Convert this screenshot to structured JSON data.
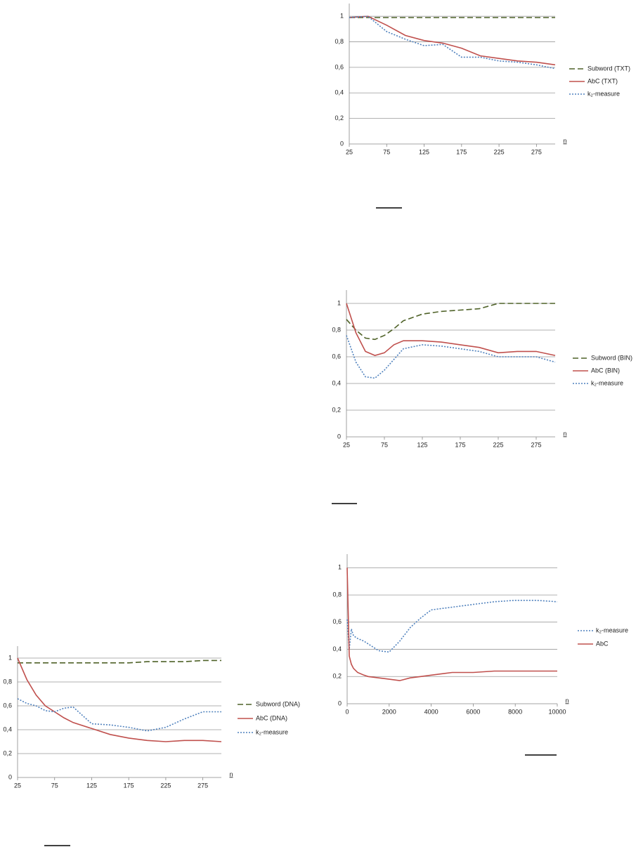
{
  "chart_data": [
    {
      "type": "line",
      "xlabel": "n",
      "x": [
        25,
        50,
        75,
        100,
        125,
        150,
        175,
        200,
        225,
        250,
        275,
        300
      ],
      "xlim": [
        25,
        300
      ],
      "xticks": [
        25,
        75,
        125,
        175,
        225,
        275
      ],
      "ylim": [
        0,
        1.1
      ],
      "yticks": [
        0,
        {
          "value": 0.2,
          "label": "0,2"
        },
        {
          "value": 0.4,
          "label": "0,4"
        },
        {
          "value": 0.6,
          "label": "0,6"
        },
        {
          "value": 0.8,
          "label": "0,8"
        },
        1
      ],
      "grid": true,
      "series": [
        {
          "name": "Subword (TXT)",
          "color": "#4f6228",
          "style": "dashed",
          "values": [
            0.99,
            0.99,
            0.99,
            0.99,
            0.99,
            0.99,
            0.99,
            0.99,
            0.99,
            0.99,
            0.99,
            0.99
          ]
        },
        {
          "name": "AbC (TXT)",
          "color": "#c0504d",
          "style": "solid",
          "values": [
            0.99,
            1.0,
            0.93,
            0.85,
            0.81,
            0.79,
            0.75,
            0.69,
            0.67,
            0.65,
            0.64,
            0.62
          ]
        },
        {
          "name": "k₂-measure",
          "color": "#4f81bd",
          "style": "dotted",
          "values": [
            0.99,
            1.0,
            0.88,
            0.82,
            0.77,
            0.78,
            0.68,
            0.68,
            0.65,
            0.64,
            0.62,
            0.59
          ]
        }
      ]
    },
    {
      "type": "line",
      "xlabel": "n",
      "x": [
        25,
        37.5,
        50,
        62.5,
        75,
        87.5,
        100,
        125,
        150,
        175,
        200,
        225,
        250,
        275,
        300
      ],
      "xlim": [
        25,
        300
      ],
      "xticks": [
        25,
        75,
        125,
        175,
        225,
        275
      ],
      "ylim": [
        0,
        1.1
      ],
      "yticks": [
        0,
        {
          "value": 0.2,
          "label": "0,2"
        },
        {
          "value": 0.4,
          "label": "0,4"
        },
        {
          "value": 0.6,
          "label": "0,6"
        },
        {
          "value": 0.8,
          "label": "0,8"
        },
        1
      ],
      "grid": true,
      "series": [
        {
          "name": "Subword (BIN)",
          "color": "#4f6228",
          "style": "dashed",
          "values": [
            0.88,
            0.8,
            0.74,
            0.73,
            0.76,
            0.81,
            0.87,
            0.92,
            0.94,
            0.95,
            0.96,
            1.0,
            1.0,
            1.0,
            1.0
          ]
        },
        {
          "name": "AbC (BIN)",
          "color": "#c0504d",
          "style": "solid",
          "values": [
            1.0,
            0.78,
            0.64,
            0.61,
            0.63,
            0.69,
            0.72,
            0.72,
            0.71,
            0.69,
            0.67,
            0.63,
            0.64,
            0.64,
            0.61
          ]
        },
        {
          "name": "k₂-measure",
          "color": "#4f81bd",
          "style": "dotted",
          "values": [
            0.76,
            0.56,
            0.45,
            0.44,
            0.5,
            0.58,
            0.66,
            0.69,
            0.68,
            0.66,
            0.64,
            0.6,
            0.6,
            0.6,
            0.56
          ]
        }
      ]
    },
    {
      "type": "line",
      "xlabel": "n",
      "x": [
        25,
        37.5,
        50,
        62.5,
        75,
        87.5,
        100,
        125,
        150,
        175,
        200,
        225,
        250,
        275,
        300
      ],
      "xlim": [
        25,
        300
      ],
      "xticks": [
        25,
        75,
        125,
        175,
        225,
        275
      ],
      "ylim": [
        0,
        1.1
      ],
      "yticks": [
        0,
        {
          "value": 0.2,
          "label": "0,2"
        },
        {
          "value": 0.4,
          "label": "0,4"
        },
        {
          "value": 0.6,
          "label": "0,6"
        },
        {
          "value": 0.8,
          "label": "0,8"
        },
        1
      ],
      "grid": true,
      "series": [
        {
          "name": "Subword (DNA)",
          "color": "#4f6228",
          "style": "dashed",
          "values": [
            0.96,
            0.96,
            0.96,
            0.96,
            0.96,
            0.96,
            0.96,
            0.96,
            0.96,
            0.96,
            0.97,
            0.97,
            0.97,
            0.98,
            0.98
          ]
        },
        {
          "name": "AbC (DNA)",
          "color": "#c0504d",
          "style": "solid",
          "values": [
            1.0,
            0.82,
            0.69,
            0.6,
            0.55,
            0.5,
            0.46,
            0.41,
            0.36,
            0.33,
            0.31,
            0.3,
            0.31,
            0.31,
            0.3
          ]
        },
        {
          "name": "k₂-measure",
          "color": "#4f81bd",
          "style": "dotted",
          "values": [
            0.66,
            0.62,
            0.6,
            0.56,
            0.55,
            0.58,
            0.59,
            0.45,
            0.44,
            0.42,
            0.39,
            0.42,
            0.49,
            0.55,
            0.55
          ]
        }
      ]
    },
    {
      "type": "line",
      "xlabel": "n",
      "x": [
        0,
        100,
        200,
        300,
        500,
        800,
        1000,
        1500,
        2000,
        2500,
        3000,
        3500,
        4000,
        5000,
        6000,
        7000,
        8000,
        9000,
        10000
      ],
      "xlim": [
        0,
        10000
      ],
      "xticks": [
        0,
        2000,
        4000,
        6000,
        8000,
        10000
      ],
      "ylim": [
        0,
        1.1
      ],
      "yticks": [
        0,
        {
          "value": 0.2,
          "label": "0,2"
        },
        {
          "value": 0.4,
          "label": "0,4"
        },
        {
          "value": 0.6,
          "label": "0,6"
        },
        {
          "value": 0.8,
          "label": "0,8"
        },
        1
      ],
      "grid": true,
      "series": [
        {
          "name": "k₂-measure",
          "color": "#4f81bd",
          "style": "dotted",
          "values": [
            0.62,
            0.4,
            0.55,
            0.5,
            0.48,
            0.46,
            0.44,
            0.39,
            0.38,
            0.46,
            0.56,
            0.63,
            0.69,
            0.71,
            0.73,
            0.75,
            0.76,
            0.76,
            0.75
          ]
        },
        {
          "name": "AbC",
          "color": "#c0504d",
          "style": "solid",
          "values": [
            1.0,
            0.35,
            0.29,
            0.26,
            0.23,
            0.21,
            0.2,
            0.19,
            0.18,
            0.17,
            0.19,
            0.2,
            0.21,
            0.23,
            0.23,
            0.24,
            0.24,
            0.24,
            0.24
          ]
        }
      ]
    }
  ]
}
